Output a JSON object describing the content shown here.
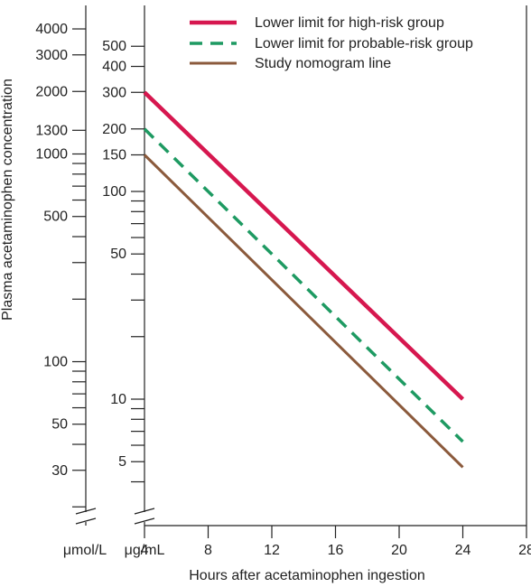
{
  "chart_data": {
    "type": "line",
    "xlabel": "Hours after acetaminophen ingestion",
    "ylabel": "Plasma acetaminophen concentration",
    "x_ticks": [
      4,
      8,
      12,
      16,
      20,
      24,
      28
    ],
    "xlim": [
      4,
      28
    ],
    "y_scale": "log",
    "y_axes": [
      {
        "unit": "μmol/L",
        "tick_labels": [
          "4000",
          "3000",
          "2000",
          "1300",
          "1000",
          "500",
          "100",
          "50",
          "30"
        ],
        "ylim": [
          20,
          4000
        ]
      },
      {
        "unit": "μg/mL",
        "tick_labels": [
          "500",
          "400",
          "300",
          "200",
          "150",
          "100",
          "50",
          "10",
          "5"
        ],
        "ylim": [
          3,
          600
        ]
      }
    ],
    "axis_break": true,
    "legend_position": "top-right",
    "series": [
      {
        "name": "Lower limit for high-risk group",
        "color": "#d6174f",
        "dash": "solid",
        "x": [
          4,
          24
        ],
        "y": [
          300,
          10
        ]
      },
      {
        "name": "Lower limit for probable-risk group",
        "color": "#1e9a62",
        "dash": "dashed",
        "x": [
          4,
          24
        ],
        "y": [
          200,
          6.25
        ]
      },
      {
        "name": "Study nomogram line",
        "color": "#8b5a3c",
        "dash": "solid",
        "x": [
          4,
          24
        ],
        "y": [
          150,
          4.7
        ]
      }
    ]
  }
}
